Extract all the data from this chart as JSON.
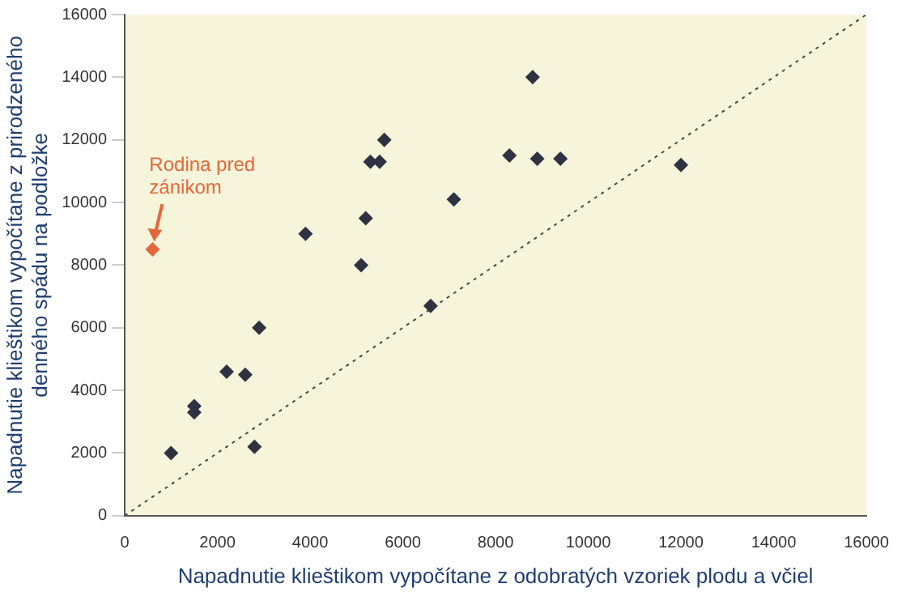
{
  "chart_data": {
    "type": "scatter",
    "xlabel": "Napadnutie klieštikom vypočítane z odobratých vzoriek plodu a včiel",
    "ylabel": "Napadnutie klieštikom vypočítane z prirodzeného denného spádu na podložke",
    "xlim": [
      0,
      16000
    ],
    "ylim": [
      0,
      16000
    ],
    "xticks": [
      0,
      2000,
      4000,
      6000,
      8000,
      10000,
      12000,
      14000,
      16000
    ],
    "yticks": [
      0,
      2000,
      4000,
      6000,
      8000,
      10000,
      12000,
      14000,
      16000
    ],
    "grid": false,
    "marker": "diamond",
    "annotations": [
      {
        "text": "Rodina pred zánikom",
        "x": 600,
        "y": 8500
      }
    ],
    "series": [
      {
        "color": "#2f3240",
        "x": [
          1000,
          1500,
          1500,
          2200,
          2600,
          2800,
          2900,
          3900,
          5100,
          5200,
          5300,
          5500,
          5600,
          6600,
          7100,
          8300,
          8800,
          8900,
          9400,
          12000
        ],
        "values": [
          2000,
          3500,
          3300,
          4600,
          4500,
          2200,
          6000,
          9000,
          8000,
          9500,
          11300,
          11300,
          12000,
          6700,
          10100,
          11500,
          14000,
          11400,
          11400,
          11200
        ]
      },
      {
        "color": "#e2683a",
        "x": [
          600
        ],
        "values": [
          8500
        ]
      },
      {
        "type": "line",
        "color": "#4a4a3a",
        "line_style": "dotted",
        "marker": "none",
        "x": [
          0,
          16000
        ],
        "values": [
          0,
          16000
        ]
      }
    ]
  }
}
